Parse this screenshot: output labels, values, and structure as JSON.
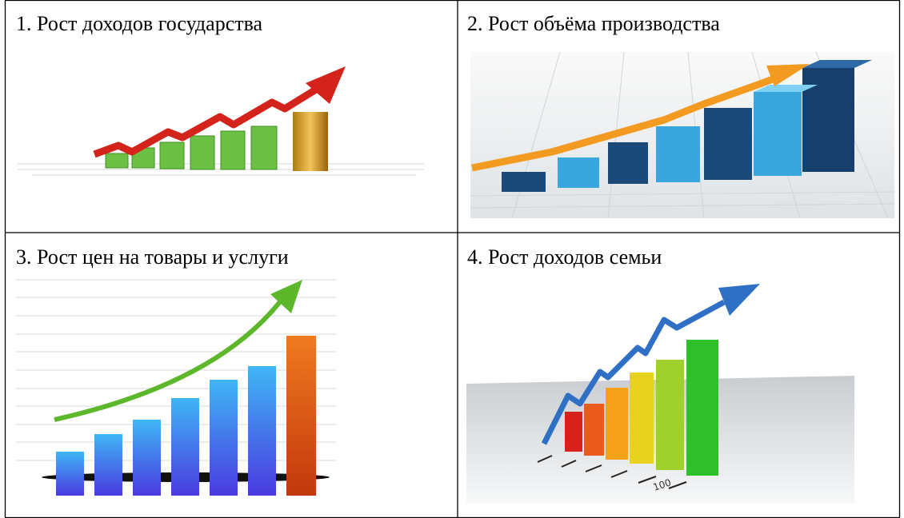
{
  "table": {
    "rows": [
      [
        "1. Рост доходов государства",
        "2. Рост объёма производства"
      ],
      [
        "3. Рост цен на товары и услуги",
        "4. Рост доходов семьи"
      ]
    ]
  },
  "images": {
    "cell_4_floor_label": "100"
  }
}
